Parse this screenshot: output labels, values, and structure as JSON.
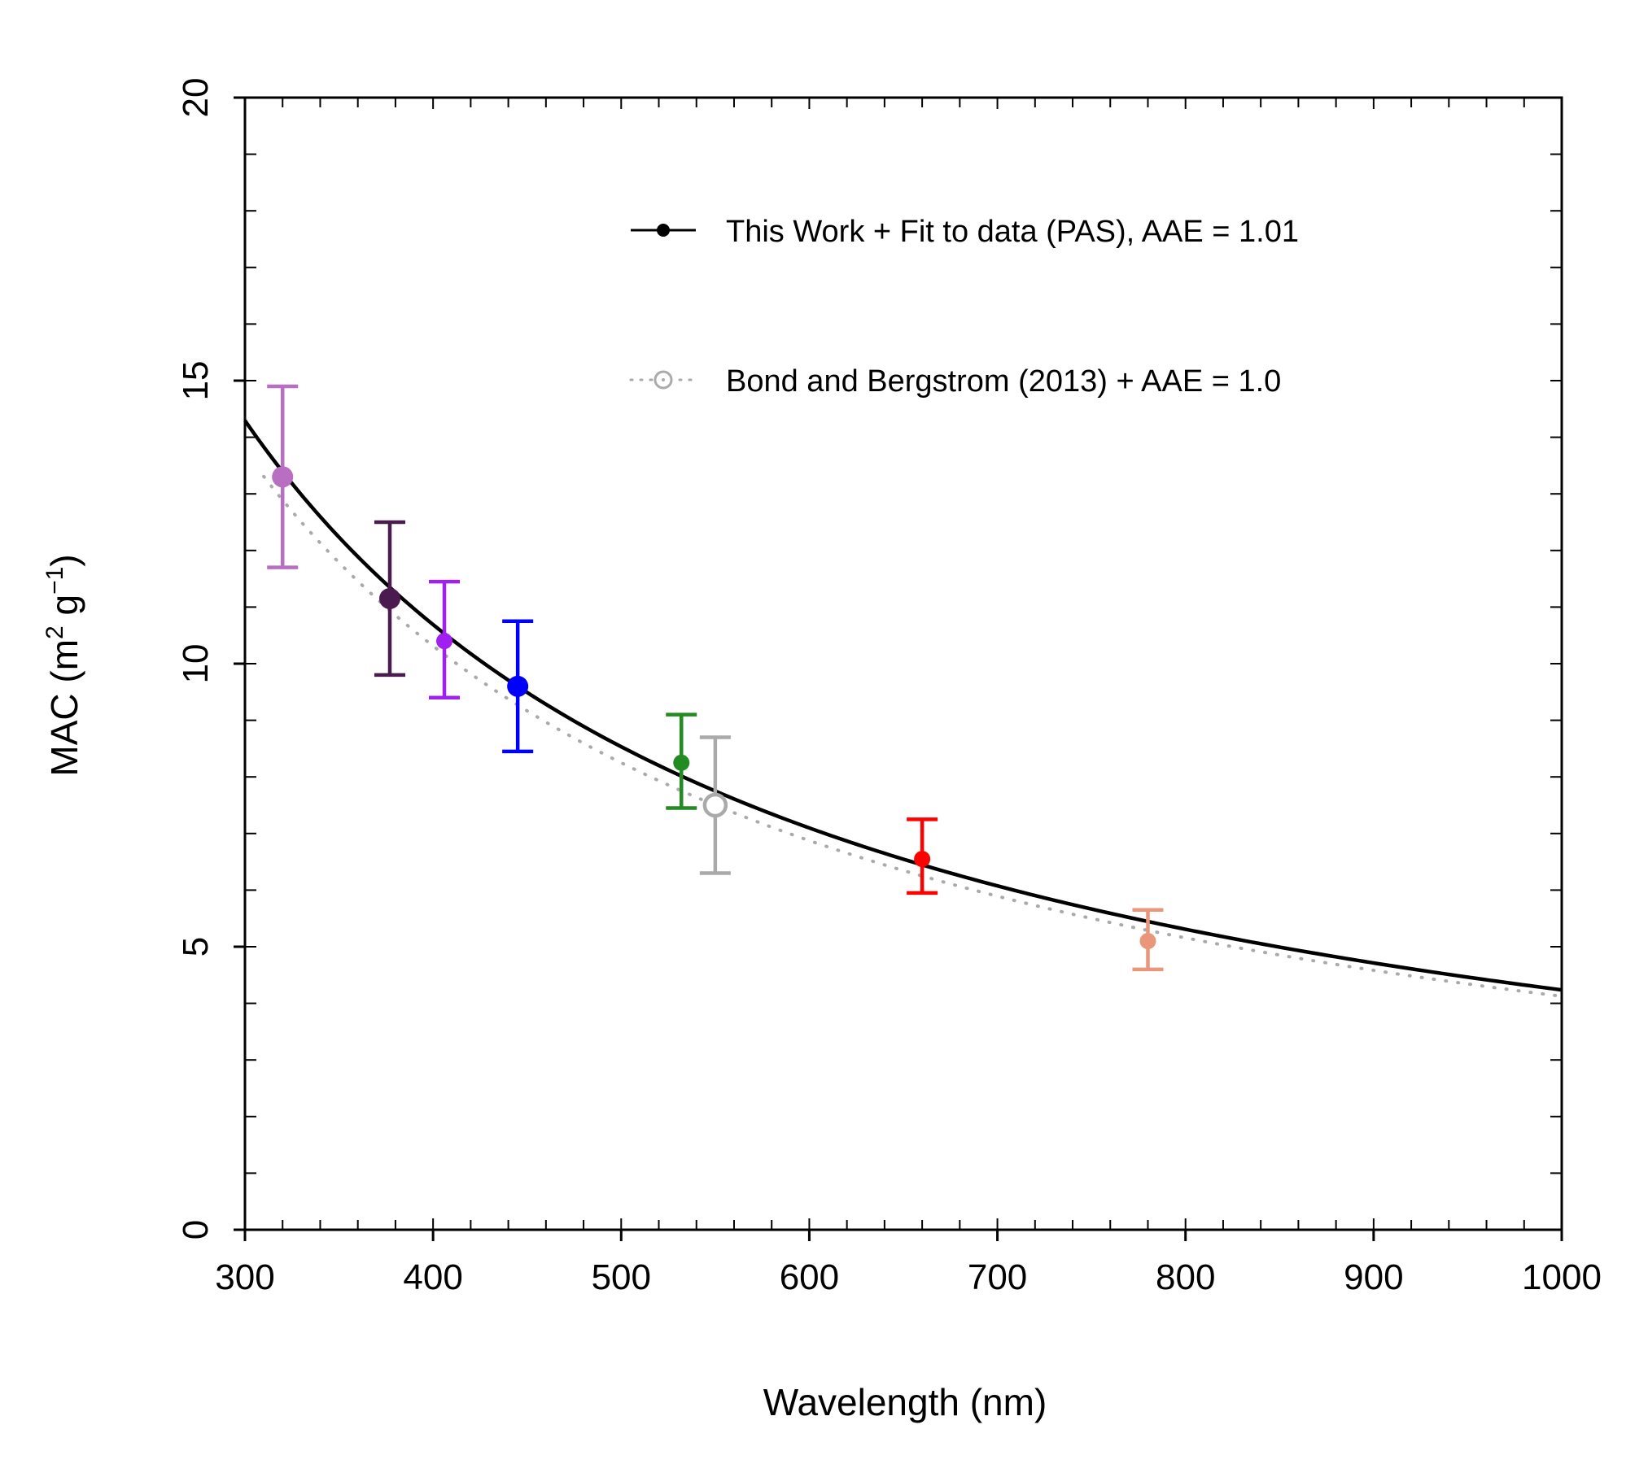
{
  "chart_data": {
    "type": "scatter",
    "title": "",
    "xlabel": "Wavelength (nm)",
    "ylabel": {
      "main": "MAC (m",
      "sup1": "2",
      "mid": " g",
      "sup2": "−1",
      "end": ")"
    },
    "xlim": [
      300,
      1000
    ],
    "ylim": [
      0,
      20
    ],
    "x_ticks": [
      300,
      400,
      500,
      600,
      700,
      800,
      900,
      1000
    ],
    "x_tick_labels": [
      "300",
      "400",
      "500",
      "600",
      "700",
      "800",
      "900",
      "1000"
    ],
    "y_ticks": [
      0,
      5,
      10,
      15,
      20
    ],
    "y_tick_labels": [
      "0",
      "5",
      "10",
      "15",
      "20"
    ],
    "x_minor_step": 20,
    "y_minor_step": 1,
    "legend_position": "top-right",
    "legend": [
      {
        "label": "This Work + Fit to data (PAS), AAE = 1.01",
        "style": "solid-line-filled-dot",
        "color": "#000000"
      },
      {
        "label": "Bond and Bergstrom (2013) + AAE = 1.0",
        "style": "dotted-line-open-circle",
        "color": "#aaaaaa"
      }
    ],
    "fit_curve": {
      "name": "This Work + Fit to data (PAS), AAE = 1.01",
      "ref_wavelength": 550,
      "ref_value": 7.75,
      "aae": 1.01,
      "color": "#000000"
    },
    "reference_curve": {
      "name": "Bond and Bergstrom (2013) + AAE = 1.0",
      "ref_wavelength": 550,
      "ref_value": 7.5,
      "aae": 1.0,
      "color": "#aaaaaa"
    },
    "points": [
      {
        "x": 320,
        "y": 13.3,
        "err_low": 11.7,
        "err_high": 14.9,
        "color": "#B86FC2",
        "marker": "filled"
      },
      {
        "x": 377,
        "y": 11.15,
        "err_low": 9.8,
        "err_high": 12.5,
        "color": "#4B1A4F",
        "marker": "filled"
      },
      {
        "x": 406,
        "y": 10.4,
        "err_low": 9.4,
        "err_high": 11.45,
        "color": "#A020F0",
        "marker": "filled"
      },
      {
        "x": 445,
        "y": 9.6,
        "err_low": 8.45,
        "err_high": 10.75,
        "color": "#0000FF",
        "marker": "filled"
      },
      {
        "x": 532,
        "y": 8.25,
        "err_low": 7.45,
        "err_high": 9.1,
        "color": "#228B22",
        "marker": "filled"
      },
      {
        "x": 550,
        "y": 7.5,
        "err_low": 6.3,
        "err_high": 8.7,
        "color": "#AAAAAA",
        "marker": "open"
      },
      {
        "x": 660,
        "y": 6.55,
        "err_low": 5.95,
        "err_high": 7.25,
        "color": "#FF0000",
        "marker": "filled"
      },
      {
        "x": 780,
        "y": 5.1,
        "err_low": 4.6,
        "err_high": 5.65,
        "color": "#E9967A",
        "marker": "filled"
      }
    ]
  }
}
